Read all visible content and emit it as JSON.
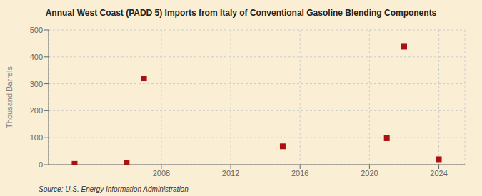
{
  "chart_data": {
    "type": "scatter",
    "title": "Annual West Coast (PADD 5) Imports from Italy of Conventional Gasoline Blending Components",
    "ylabel": "Thousand Barrels",
    "annotation": "Source: U.S. Energy Information Administration",
    "x": [
      2003,
      2006,
      2007,
      2015,
      2021,
      2022,
      2024
    ],
    "values": [
      3,
      8,
      320,
      68,
      98,
      438,
      20
    ],
    "color": "#aa1111",
    "marker": "square",
    "xlim": [
      2001.5,
      2025.5
    ],
    "ylim": [
      0,
      500
    ],
    "xticks": [
      2008,
      2012,
      2016,
      2020,
      2024
    ],
    "yticks": [
      0,
      100,
      200,
      300,
      400,
      500
    ],
    "grid": true
  }
}
